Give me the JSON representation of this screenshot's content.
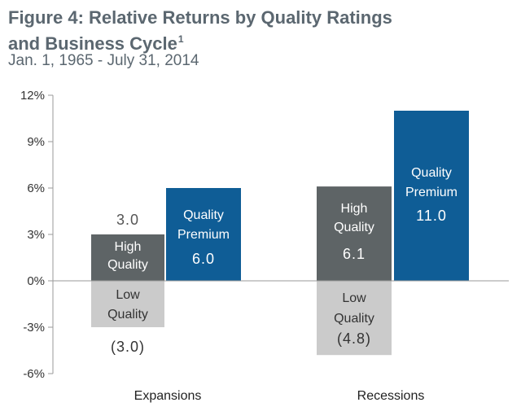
{
  "title": "Figure 4: Relative Returns by Quality Ratings and Business Cycle",
  "title_line1": "Figure 4: Relative Returns by Quality Ratings",
  "title_line2": "and Business Cycle",
  "title_sup": "1",
  "subtitle": "Jan. 1, 1965 - July 31, 2014",
  "colors": {
    "high": "#5e6466",
    "low": "#cbcbcb",
    "premium": "#0f5d96"
  },
  "chart_data": {
    "type": "bar",
    "title": "Figure 4: Relative Returns by Quality Ratings and Business Cycle",
    "subtitle": "Jan. 1, 1965 - July 31, 2014",
    "categories": [
      "Expansions",
      "Recessions"
    ],
    "ylim": [
      -6,
      12
    ],
    "yticks": [
      12,
      9,
      6,
      3,
      0,
      -3,
      -6
    ],
    "ytick_labels": [
      "12%",
      "9%",
      "6%",
      "3%",
      "0%",
      "-3%",
      "-6%"
    ],
    "grid": false,
    "series": [
      {
        "name": "High Quality",
        "label_lines": [
          "High",
          "Quality"
        ],
        "values": [
          3.0,
          6.1
        ],
        "value_labels": [
          "3.0",
          "6.1"
        ],
        "color": "#5e6466"
      },
      {
        "name": "Low Quality",
        "label_lines": [
          "Low",
          "Quality"
        ],
        "values": [
          -3.0,
          -4.8
        ],
        "value_labels": [
          "(3.0)",
          "(4.8)"
        ],
        "color": "#cbcbcb"
      },
      {
        "name": "Quality Premium",
        "label_lines": [
          "Quality",
          "Premium"
        ],
        "values": [
          6.0,
          11.0
        ],
        "value_labels": [
          "6.0",
          "11.0"
        ],
        "color": "#0f5d96"
      }
    ]
  }
}
